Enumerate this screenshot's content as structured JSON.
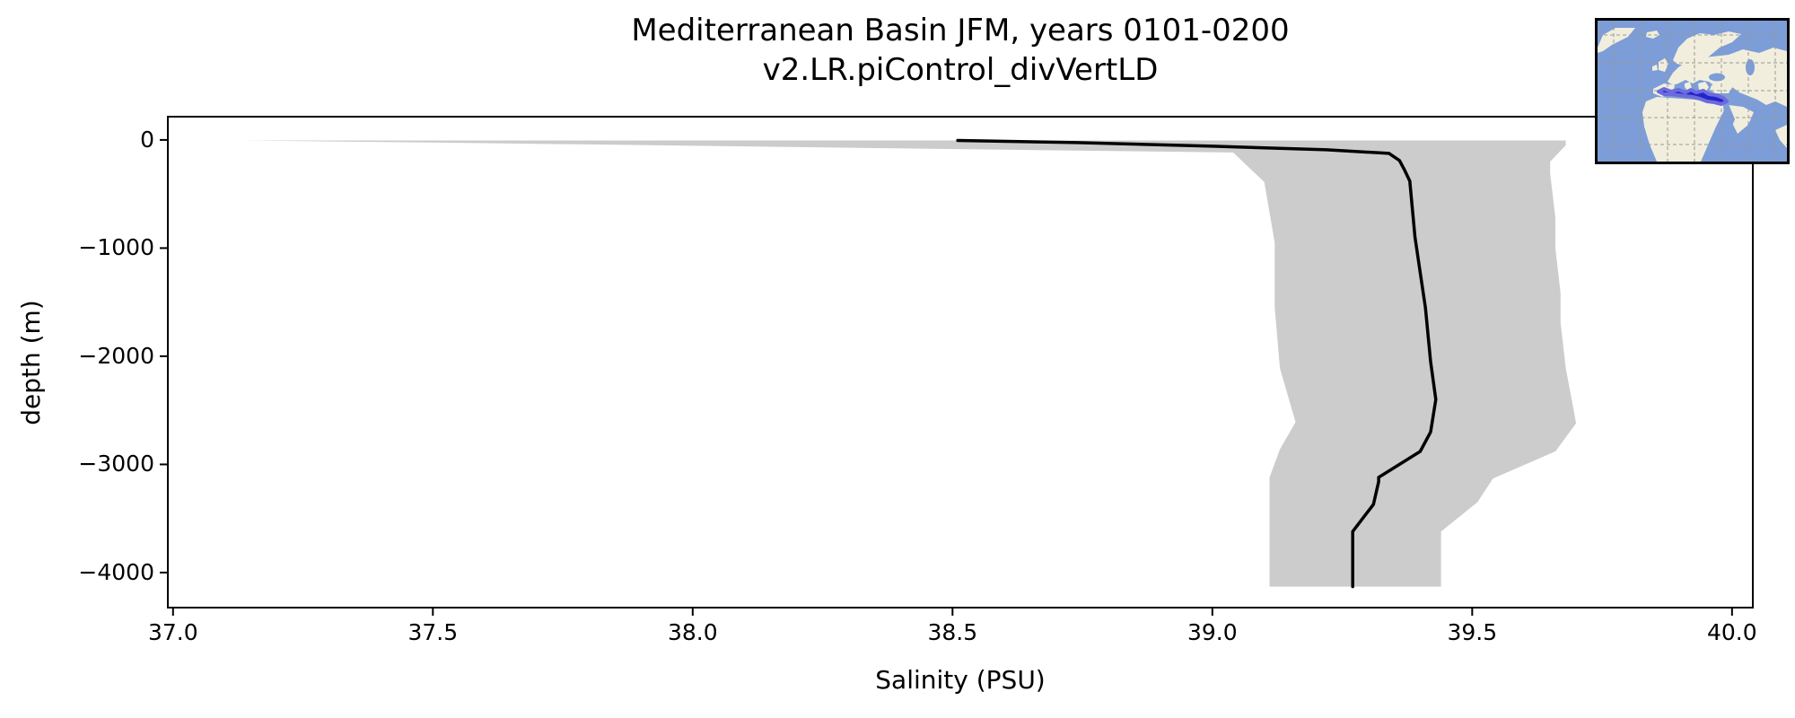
{
  "title": {
    "line1": "Mediterranean Basin JFM, years 0101-0200",
    "line2": "v2.LR.piControl_divVertLD"
  },
  "axes": {
    "xlabel": "Salinity (PSU)",
    "ylabel": "depth (m)",
    "xlim": [
      36.99,
      40.04
    ],
    "ylim_bottom": -4324,
    "ylim_top": 215,
    "xticks": {
      "values": [
        37.0,
        37.5,
        38.0,
        38.5,
        39.0,
        39.5,
        40.0
      ],
      "labels": [
        "37.0",
        "37.5",
        "38.0",
        "38.5",
        "39.0",
        "39.5",
        "40.0"
      ]
    },
    "yticks": {
      "values": [
        0,
        -1000,
        -2000,
        -3000,
        -4000
      ],
      "labels": [
        "0",
        "−1000",
        "−2000",
        "−3000",
        "−4000"
      ]
    }
  },
  "chart_data": {
    "type": "line",
    "title": "Mediterranean Basin JFM, years 0101-0200 / v2.LR.piControl_divVertLD",
    "xlabel": "Salinity (PSU)",
    "ylabel": "depth (m)",
    "xlim": [
      36.99,
      40.04
    ],
    "ylim": [
      -4324,
      215
    ],
    "grid": false,
    "legend": "none",
    "description": "Vertical salinity profile: black line = basin mean, gray shading = min/max envelope across the basin; depth in meters (negative down), points given as [depth_m, salinity_psu]",
    "series": [
      {
        "name": "mean",
        "style": "solid-line",
        "color": "#000000",
        "points": [
          [
            -5,
            38.51
          ],
          [
            -25,
            38.74
          ],
          [
            -58,
            39.0
          ],
          [
            -91,
            39.22
          ],
          [
            -124,
            39.34
          ],
          [
            -190,
            39.36
          ],
          [
            -280,
            39.37
          ],
          [
            -380,
            39.38
          ],
          [
            -900,
            39.39
          ],
          [
            -1550,
            39.41
          ],
          [
            -2050,
            39.42
          ],
          [
            -2400,
            39.43
          ],
          [
            -2700,
            39.42
          ],
          [
            -2880,
            39.4
          ],
          [
            -3120,
            39.32
          ],
          [
            -3160,
            39.32
          ],
          [
            -3370,
            39.31
          ],
          [
            -3620,
            39.27
          ],
          [
            -4130,
            39.27
          ]
        ]
      },
      {
        "name": "min-envelope",
        "style": "fill-edge",
        "color": "#cccccc",
        "points": [
          [
            -5,
            37.13
          ],
          [
            -30,
            37.6
          ],
          [
            -60,
            38.1
          ],
          [
            -90,
            38.6
          ],
          [
            -116,
            39.04
          ],
          [
            -390,
            39.1
          ],
          [
            -950,
            39.12
          ],
          [
            -1550,
            39.12
          ],
          [
            -2110,
            39.13
          ],
          [
            -2610,
            39.16
          ],
          [
            -2860,
            39.13
          ],
          [
            -3120,
            39.11
          ],
          [
            -4130,
            39.11
          ]
        ]
      },
      {
        "name": "max-envelope",
        "style": "fill-edge",
        "color": "#cccccc",
        "points": [
          [
            -5,
            39.68
          ],
          [
            -50,
            39.68
          ],
          [
            -200,
            39.65
          ],
          [
            -310,
            39.65
          ],
          [
            -720,
            39.66
          ],
          [
            -1000,
            39.66
          ],
          [
            -1420,
            39.67
          ],
          [
            -1690,
            39.67
          ],
          [
            -2110,
            39.68
          ],
          [
            -2360,
            39.69
          ],
          [
            -2620,
            39.7
          ],
          [
            -2880,
            39.66
          ],
          [
            -3130,
            39.54
          ],
          [
            -3350,
            39.51
          ],
          [
            -3620,
            39.44
          ],
          [
            -4130,
            39.44
          ]
        ]
      }
    ]
  },
  "colors": {
    "mean_line": "#000000",
    "envelope_fill": "#cccccc",
    "spine": "#000000",
    "background": "#ffffff"
  },
  "inset_map": {
    "region": "Mediterranean Basin",
    "ocean_color": "#7c9dd7",
    "land_color": "#f1eedd",
    "grid_color": "#999999",
    "highlight_color": "#2323c8",
    "highlight_halo_color": "#6b6bdf",
    "border_color": "#000000"
  }
}
